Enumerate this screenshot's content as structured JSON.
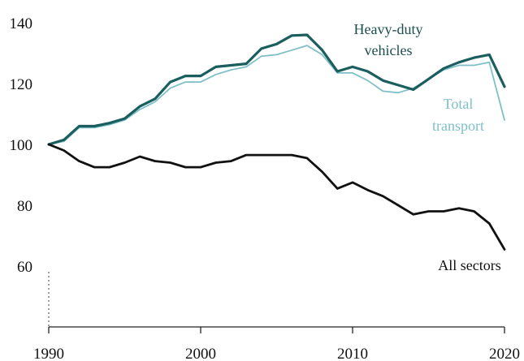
{
  "chart_data": {
    "type": "line",
    "title": "",
    "xlabel": "",
    "ylabel": "",
    "xlim": [
      1990,
      2020
    ],
    "ylim": [
      40,
      140
    ],
    "x_ticks": [
      "1990",
      "2000",
      "2010",
      "2020"
    ],
    "y_ticks": [
      "140",
      "120",
      "100",
      "80",
      "60"
    ],
    "grid": false,
    "series": [
      {
        "name": "Heavy-duty vehicles",
        "label_lines": [
          "Heavy-duty",
          "vehicles"
        ],
        "color": "#1b5e5e",
        "x": [
          1990,
          1991,
          1992,
          1993,
          1994,
          1995,
          1996,
          1997,
          1998,
          1999,
          2000,
          2001,
          2002,
          2003,
          2004,
          2005,
          2006,
          2007,
          2008,
          2009,
          2010,
          2011,
          2012,
          2013,
          2014,
          2015,
          2016,
          2017,
          2018,
          2019,
          2020
        ],
        "y": [
          100,
          101.5,
          106,
          106,
          107,
          108.5,
          112.5,
          115,
          120.5,
          122.5,
          122.5,
          125.5,
          126,
          126.5,
          131.5,
          133,
          135.8,
          136,
          131,
          124,
          125.5,
          124,
          121,
          119.5,
          118,
          121.5,
          125,
          127,
          128.5,
          129.5,
          119
        ]
      },
      {
        "name": "Total transport",
        "label_lines": [
          "Total",
          "transport"
        ],
        "color": "#7fbfc8",
        "x": [
          1990,
          1991,
          1992,
          1993,
          1994,
          1995,
          1996,
          1997,
          1998,
          1999,
          2000,
          2001,
          2002,
          2003,
          2004,
          2005,
          2006,
          2007,
          2008,
          2009,
          2010,
          2011,
          2012,
          2013,
          2014,
          2015,
          2016,
          2017,
          2018,
          2019,
          2020
        ],
        "y": [
          100,
          101,
          105.5,
          105.5,
          106.5,
          108,
          111.5,
          114,
          118.5,
          120.5,
          120.5,
          123,
          124.5,
          125.5,
          129,
          129.5,
          131,
          132.5,
          129.5,
          123.5,
          123.5,
          121,
          117.5,
          117,
          118.5,
          121.5,
          124.5,
          126,
          126,
          127,
          108
        ]
      },
      {
        "name": "All sectors",
        "label_lines": [
          "All sectors"
        ],
        "color": "#111111",
        "x": [
          1990,
          1991,
          1992,
          1993,
          1994,
          1995,
          1996,
          1997,
          1998,
          1999,
          2000,
          2001,
          2002,
          2003,
          2004,
          2005,
          2006,
          2007,
          2008,
          2009,
          2010,
          2011,
          2012,
          2013,
          2014,
          2015,
          2016,
          2017,
          2018,
          2019,
          2020
        ],
        "y": [
          100,
          98,
          94.5,
          92.5,
          92.5,
          94,
          96,
          94.5,
          94,
          92.5,
          92.5,
          94,
          94.5,
          96.5,
          96.5,
          96.5,
          96.5,
          95.5,
          91,
          85.5,
          87.5,
          85,
          83,
          80,
          77,
          78,
          78,
          79,
          78,
          74,
          65.5
        ]
      }
    ]
  }
}
